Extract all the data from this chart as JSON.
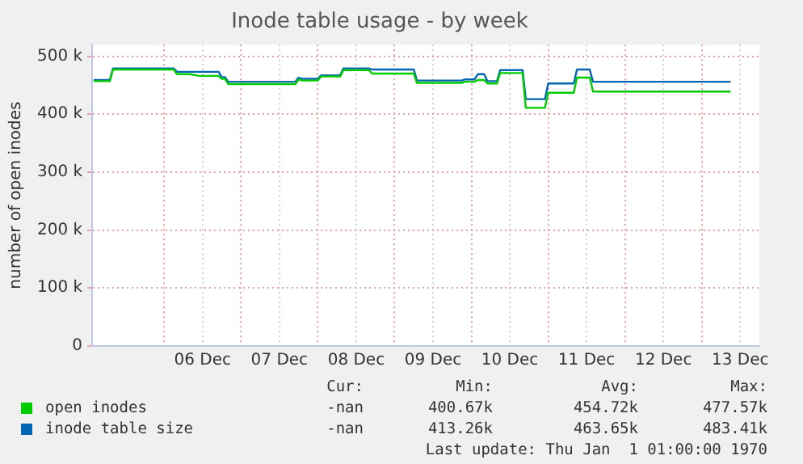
{
  "chart_data": {
    "type": "line",
    "title": "Inode table usage - by week",
    "ylabel": "number of open inodes",
    "x": [
      "--12-05T02:00",
      "--12-05T07:00",
      "--12-05T08:00",
      "--12-06T03:00",
      "--12-06T04:00",
      "--12-06T08:00",
      "--12-06T11:00",
      "--12-06T17:00",
      "--12-06T18:00",
      "--12-06T19:00",
      "--12-06T20:00",
      "--12-07T17:00",
      "--12-07T18:00",
      "--12-07T19:00",
      "--12-08T00:00",
      "--12-08T01:00",
      "--12-08T07:00",
      "--12-08T08:00",
      "--12-08T16:00",
      "--12-08T17:00",
      "--12-09T06:00",
      "--12-09T07:00",
      "--12-09T21:00",
      "--12-09T22:00",
      "--12-10T01:00",
      "--12-10T02:00",
      "--12-10T04:00",
      "--12-10T05:00",
      "--12-10T08:00",
      "--12-10T09:00",
      "--12-10T16:00",
      "--12-10T17:00",
      "--12-10T23:00",
      "--12-11T00:00",
      "--12-11T08:00",
      "--12-11T09:00",
      "--12-11T13:00",
      "--12-11T14:00",
      "--12-13T09:00"
    ],
    "series": [
      {
        "name": "open inodes",
        "color": "#00cc00",
        "values": [
          457000,
          457000,
          477000,
          477000,
          469000,
          469000,
          466000,
          466000,
          461000,
          461000,
          452000,
          452000,
          460000,
          458000,
          458000,
          465000,
          465000,
          476000,
          476000,
          470000,
          470000,
          454000,
          454000,
          456000,
          456000,
          459000,
          459000,
          453000,
          453000,
          471000,
          471000,
          411000,
          411000,
          437000,
          437000,
          463000,
          463000,
          439000,
          439000
        ]
      },
      {
        "name": "inode table size",
        "color": "#0066b3",
        "values": [
          459000,
          459000,
          479000,
          479000,
          473000,
          473000,
          473000,
          473000,
          464000,
          464000,
          456000,
          456000,
          463000,
          461000,
          461000,
          467000,
          467000,
          479000,
          479000,
          477000,
          477000,
          458000,
          458000,
          460000,
          460000,
          469000,
          469000,
          457000,
          457000,
          476000,
          476000,
          426000,
          426000,
          453000,
          453000,
          477000,
          477000,
          456000,
          456000
        ]
      }
    ],
    "xlim": [
      "--12-05T01:30",
      "--12-13T18:00"
    ],
    "xticks": [
      {
        "value": "--12-06T00:00",
        "label": null
      },
      {
        "value": "--12-06T12:00",
        "label": "06 Dec"
      },
      {
        "value": "--12-07T00:00",
        "label": null
      },
      {
        "value": "--12-07T12:00",
        "label": "07 Dec"
      },
      {
        "value": "--12-08T00:00",
        "label": null
      },
      {
        "value": "--12-08T12:00",
        "label": "08 Dec"
      },
      {
        "value": "--12-09T00:00",
        "label": null
      },
      {
        "value": "--12-09T12:00",
        "label": "09 Dec"
      },
      {
        "value": "--12-10T00:00",
        "label": null
      },
      {
        "value": "--12-10T12:00",
        "label": "10 Dec"
      },
      {
        "value": "--12-11T00:00",
        "label": null
      },
      {
        "value": "--12-11T12:00",
        "label": "11 Dec"
      },
      {
        "value": "--12-12T00:00",
        "label": null
      },
      {
        "value": "--12-12T12:00",
        "label": "12 Dec"
      },
      {
        "value": "--12-13T00:00",
        "label": null
      },
      {
        "value": "--12-13T12:00",
        "label": "13 Dec"
      }
    ],
    "ylim": [
      0,
      520000
    ],
    "yticks": [
      0,
      {
        "value": 100000,
        "label": "100 k"
      },
      {
        "value": 200000,
        "label": "200 k"
      },
      {
        "value": 300000,
        "label": "300 k"
      },
      {
        "value": 400000,
        "label": "400 k"
      },
      {
        "value": 500000,
        "label": "500 k"
      }
    ],
    "grid": true,
    "legend": "bottom",
    "marker": "none",
    "line_style": "solid",
    "annotations": [
      "Cur:",
      "Min:",
      "Avg:",
      "Max:",
      "-nan",
      "400.67k",
      "454.72k",
      "477.57k",
      "-nan",
      "413.26k",
      "463.65k",
      "483.41k",
      "Last update: Thu Jan  1 01:00:00 1970"
    ]
  }
}
